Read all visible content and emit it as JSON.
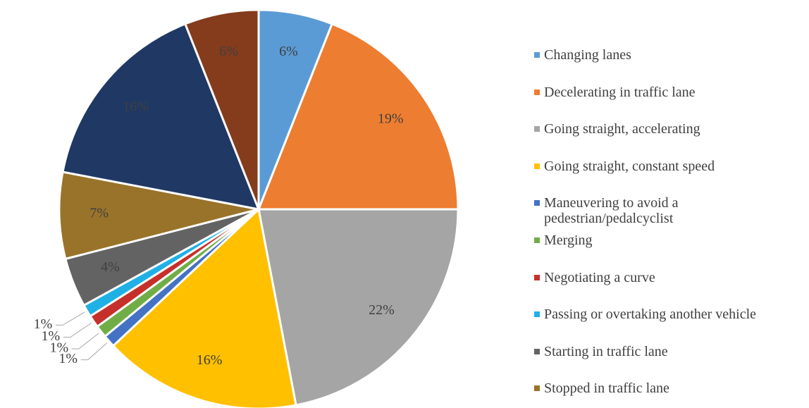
{
  "chart_data": {
    "type": "pie",
    "categories": [
      "Changing lanes",
      "Decelerating in traffic lane",
      "Going straight, accelerating",
      "Going straight, constant speed",
      "Maneuvering to avoid a pedestrian/pedalcyclist",
      "Merging",
      "Negotiating a curve",
      "Passing or overtaking another vehicle",
      "Starting in traffic lane",
      "Stopped in traffic lane",
      null,
      null
    ],
    "values": [
      6,
      19,
      22,
      16,
      1,
      1,
      1,
      1,
      4,
      7,
      16,
      6
    ],
    "value_labels": [
      "6%",
      "19%",
      "22%",
      "16%",
      "1%",
      "1%",
      "1%",
      "1%",
      "4%",
      "7%",
      "16%",
      "6%"
    ],
    "colors": [
      "#5b9bd5",
      "#ed7d31",
      "#a5a5a5",
      "#ffc000",
      "#4472c4",
      "#70ad47",
      "#c5302a",
      "#1fb0e6",
      "#636363",
      "#997329",
      "#203864",
      "#843c1c"
    ]
  }
}
